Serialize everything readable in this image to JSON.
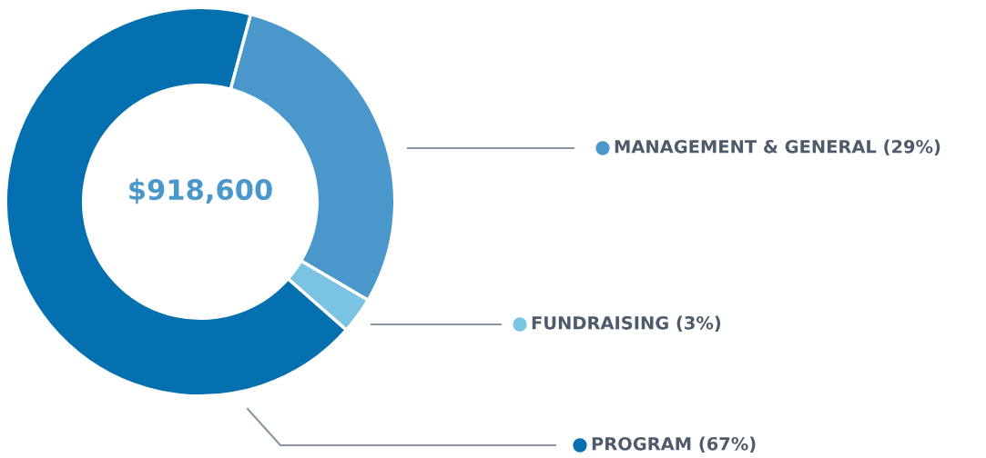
{
  "chart_data": {
    "type": "donut",
    "categories": [
      "MANAGEMENT & GENERAL (29%)",
      "FUNDRAISING (3%)",
      "PROGRAM (67%)"
    ],
    "values": [
      29,
      3,
      67
    ],
    "colors": [
      "#4a98cb",
      "#7ac3e3",
      "#0470b0"
    ],
    "annotations": [
      "$918,600"
    ],
    "legend": "right"
  }
}
